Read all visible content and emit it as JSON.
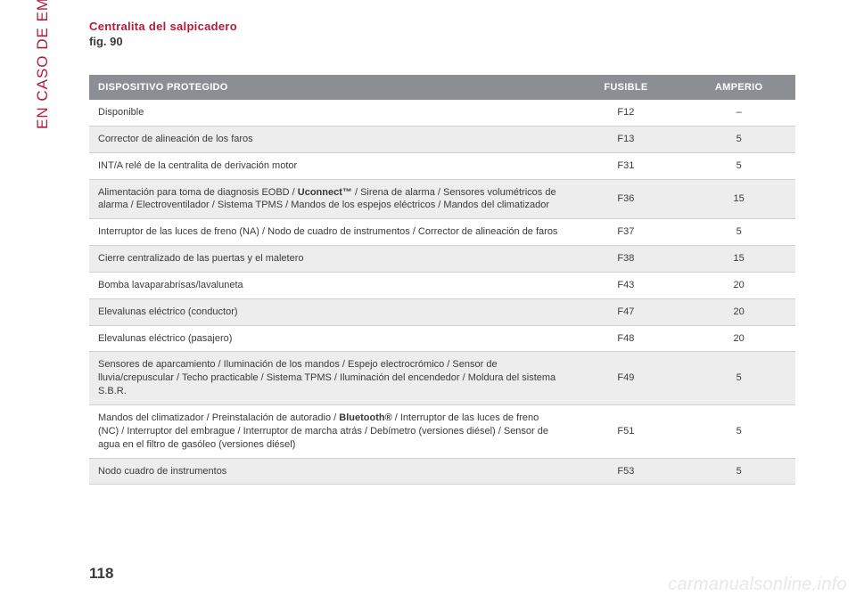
{
  "sidebar_label": "EN CASO DE EMERGENCIA",
  "heading": "Centralita del salpicadero",
  "fig_label": "fig. 90",
  "page_number": "118",
  "watermark": "carmanualsonline.info",
  "table": {
    "columns": [
      {
        "label": "DISPOSITIVO PROTEGIDO",
        "align": "left",
        "width_pct": 68
      },
      {
        "label": "FUSIBLE",
        "align": "center",
        "width_pct": 16
      },
      {
        "label": "AMPERIO",
        "align": "center",
        "width_pct": 16
      }
    ],
    "rows": [
      {
        "desc_parts": [
          {
            "t": "Disponible"
          }
        ],
        "fuse": "F12",
        "amp": "–",
        "shade": false
      },
      {
        "desc_parts": [
          {
            "t": "Corrector de alineación de los faros"
          }
        ],
        "fuse": "F13",
        "amp": "5",
        "shade": true
      },
      {
        "desc_parts": [
          {
            "t": "INT/A relé de la centralita de derivación motor"
          }
        ],
        "fuse": "F31",
        "amp": "5",
        "shade": false
      },
      {
        "desc_parts": [
          {
            "t": "Alimentación para toma de diagnosis EOBD / "
          },
          {
            "t": "Uconnect™",
            "bold": true
          },
          {
            "t": " / Sirena de alarma / Sensores volumétricos de alarma / Electroventilador / Sistema TPMS / Mandos de los espejos eléctricos / Mandos del climatizador"
          }
        ],
        "fuse": "F36",
        "amp": "15",
        "shade": true
      },
      {
        "desc_parts": [
          {
            "t": "Interruptor de las luces de freno (NA) / Nodo de cuadro de instrumentos / Corrector de alineación de faros"
          }
        ],
        "fuse": "F37",
        "amp": "5",
        "shade": false
      },
      {
        "desc_parts": [
          {
            "t": "Cierre centralizado de las puertas y el maletero"
          }
        ],
        "fuse": "F38",
        "amp": "15",
        "shade": true
      },
      {
        "desc_parts": [
          {
            "t": "Bomba lavaparabrisas/lavaluneta"
          }
        ],
        "fuse": "F43",
        "amp": "20",
        "shade": false
      },
      {
        "desc_parts": [
          {
            "t": "Elevalunas eléctrico (conductor)"
          }
        ],
        "fuse": "F47",
        "amp": "20",
        "shade": true
      },
      {
        "desc_parts": [
          {
            "t": "Elevalunas eléctrico (pasajero)"
          }
        ],
        "fuse": "F48",
        "amp": "20",
        "shade": false
      },
      {
        "desc_parts": [
          {
            "t": "Sensores de aparcamiento / Iluminación de los mandos / Espejo electrocrómico / Sensor de lluvia/crepuscular / Techo practicable / Sistema TPMS / Iluminación del encendedor / Moldura del sistema S.B.R."
          }
        ],
        "fuse": "F49",
        "amp": "5",
        "shade": true
      },
      {
        "desc_parts": [
          {
            "t": "Mandos del climatizador / Preinstalación de autoradio / "
          },
          {
            "t": "Bluetooth®",
            "bold": true
          },
          {
            "t": " / Interruptor de las luces de freno (NC) / Interruptor del embrague / Interruptor de marcha atrás / Debímetro (versiones diésel) / Sensor de agua en el filtro de gasóleo (versiones diésel)"
          }
        ],
        "fuse": "F51",
        "amp": "5",
        "shade": false
      },
      {
        "desc_parts": [
          {
            "t": "Nodo cuadro de instrumentos"
          }
        ],
        "fuse": "F53",
        "amp": "5",
        "shade": true
      }
    ],
    "header_bg": "#8b8f94",
    "header_text_color": "#ffffff",
    "row_shade_bg": "#ededed",
    "border_color": "#d0d0d0",
    "font_size_pt": 8
  },
  "colors": {
    "accent": "#b31b3a",
    "text": "#3a3a3a",
    "background": "#ffffff",
    "watermark": "#e8e8e8"
  }
}
